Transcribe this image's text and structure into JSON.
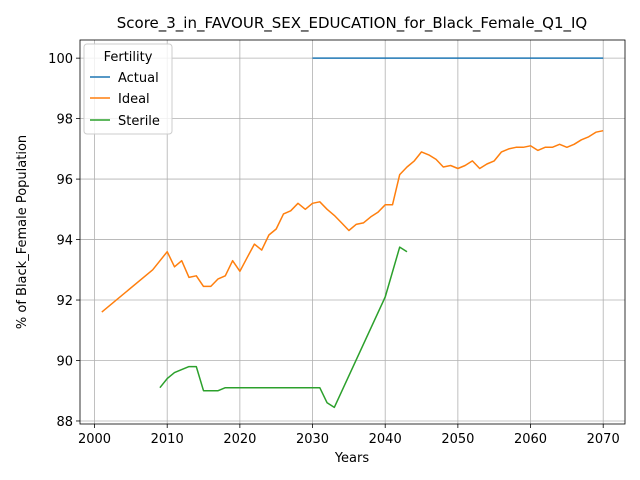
{
  "chart_data": {
    "type": "line",
    "title": "Score_3_in_FAVOUR_SEX_EDUCATION_for_Black_Female_Q1_IQ",
    "xlabel": "Years",
    "ylabel": "% of Black_Female Population",
    "xlim": [
      1998,
      2073
    ],
    "ylim": [
      87.9,
      100.6
    ],
    "xticks": [
      2000,
      2010,
      2020,
      2030,
      2040,
      2050,
      2060,
      2070
    ],
    "yticks": [
      88,
      90,
      92,
      94,
      96,
      98,
      100
    ],
    "grid": true,
    "legend": {
      "title": "Fertility",
      "placement": "top-left"
    },
    "series": [
      {
        "name": "Actual",
        "color": "#1f77b4",
        "x": [
          2030,
          2070
        ],
        "y": [
          100,
          100
        ]
      },
      {
        "name": "Ideal",
        "color": "#ff7f0e",
        "x": [
          2001,
          2008,
          2010,
          2011,
          2012,
          2013,
          2014,
          2015,
          2016,
          2017,
          2018,
          2019,
          2020,
          2021,
          2022,
          2023,
          2024,
          2025,
          2026,
          2027,
          2028,
          2029,
          2030,
          2031,
          2032,
          2033,
          2034,
          2035,
          2036,
          2037,
          2038,
          2039,
          2040,
          2041,
          2042,
          2043,
          2044,
          2045,
          2046,
          2047,
          2048,
          2049,
          2050,
          2051,
          2052,
          2053,
          2054,
          2055,
          2056,
          2057,
          2058,
          2059,
          2060,
          2061,
          2062,
          2063,
          2064,
          2065,
          2066,
          2067,
          2068,
          2069,
          2070
        ],
        "y": [
          91.6,
          93.0,
          93.6,
          93.1,
          93.3,
          92.75,
          92.8,
          92.45,
          92.45,
          92.7,
          92.8,
          93.3,
          92.95,
          93.4,
          93.85,
          93.65,
          94.15,
          94.35,
          94.85,
          94.95,
          95.2,
          95.0,
          95.2,
          95.25,
          95.0,
          94.8,
          94.55,
          94.3,
          94.5,
          94.55,
          94.75,
          94.9,
          95.15,
          95.15,
          96.15,
          96.4,
          96.6,
          96.9,
          96.8,
          96.65,
          96.4,
          96.45,
          96.35,
          96.45,
          96.6,
          96.35,
          96.5,
          96.6,
          96.9,
          97.0,
          97.05,
          97.05,
          97.1,
          96.95,
          97.05,
          97.05,
          97.15,
          97.05,
          97.15,
          97.3,
          97.4,
          97.55,
          97.6
        ]
      },
      {
        "name": "Sterile",
        "color": "#2ca02c",
        "x": [
          2009,
          2010,
          2011,
          2012,
          2013,
          2014,
          2015,
          2016,
          2017,
          2018,
          2019,
          2020,
          2021,
          2022,
          2023,
          2024,
          2025,
          2026,
          2027,
          2028,
          2029,
          2030,
          2031,
          2032,
          2033,
          2040,
          2042,
          2043
        ],
        "y": [
          89.1,
          89.4,
          89.6,
          89.7,
          89.8,
          89.8,
          89.0,
          89.0,
          89.0,
          89.1,
          89.1,
          89.1,
          89.1,
          89.1,
          89.1,
          89.1,
          89.1,
          89.1,
          89.1,
          89.1,
          89.1,
          89.1,
          89.1,
          88.6,
          88.45,
          92.1,
          93.75,
          93.6
        ]
      }
    ]
  }
}
